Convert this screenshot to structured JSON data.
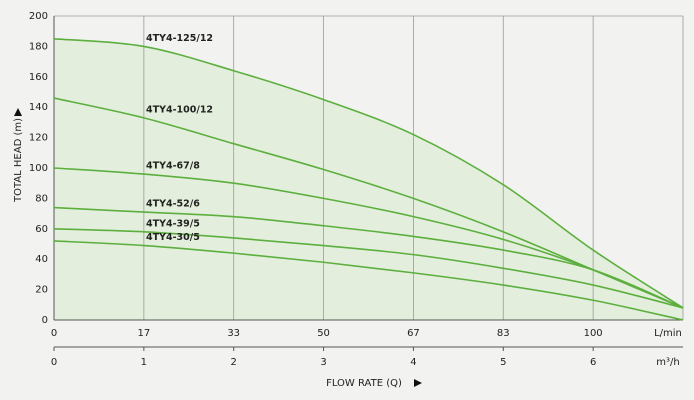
{
  "chart_data": {
    "type": "line",
    "x_label": "FLOW RATE (Q)",
    "y_label": "TOTAL HEAD (m)",
    "x_unit": "m³/h",
    "x2_unit": "L/min",
    "xlim": [
      0,
      7
    ],
    "xticks": [
      0,
      1,
      2,
      3,
      4,
      5,
      6
    ],
    "x2lim": [
      0,
      116.67
    ],
    "x2ticks": [
      0,
      {
        "value": 16.67,
        "label": "17"
      },
      {
        "value": 33.33,
        "label": "33"
      },
      50,
      {
        "value": 66.67,
        "label": "67"
      },
      {
        "value": 83.33,
        "label": "83"
      },
      100
    ],
    "ylim": [
      0,
      200
    ],
    "yticks": [
      0,
      20,
      40,
      60,
      80,
      100,
      120,
      140,
      160,
      180,
      200
    ],
    "grid": true,
    "fill_color": "#e3efdc",
    "x": [
      0,
      1,
      2,
      3,
      4,
      5,
      6,
      7
    ],
    "series": [
      {
        "name": "4TY4-125/12",
        "color": "#5caf3e",
        "values": [
          185,
          180,
          164,
          145,
          122,
          89,
          46,
          8
        ]
      },
      {
        "name": "4TY4-100/12",
        "color": "#5caf3e",
        "values": [
          146,
          133,
          116,
          99,
          80,
          58,
          33,
          8
        ]
      },
      {
        "name": "4TY4-67/8",
        "color": "#5caf3e",
        "values": [
          100,
          96,
          90,
          80,
          68,
          53,
          33,
          8
        ]
      },
      {
        "name": "4TY4-52/6",
        "color": "#5caf3e",
        "values": [
          74,
          71,
          68,
          62,
          55,
          46,
          33,
          8
        ]
      },
      {
        "name": "4TY4-39/5",
        "color": "#5caf3e",
        "values": [
          60,
          58,
          54,
          49,
          43,
          34,
          23,
          8
        ]
      },
      {
        "name": "4TY4-30/5",
        "color": "#5caf3e",
        "values": [
          52,
          49,
          44,
          38,
          31,
          23,
          13,
          0
        ]
      }
    ]
  }
}
